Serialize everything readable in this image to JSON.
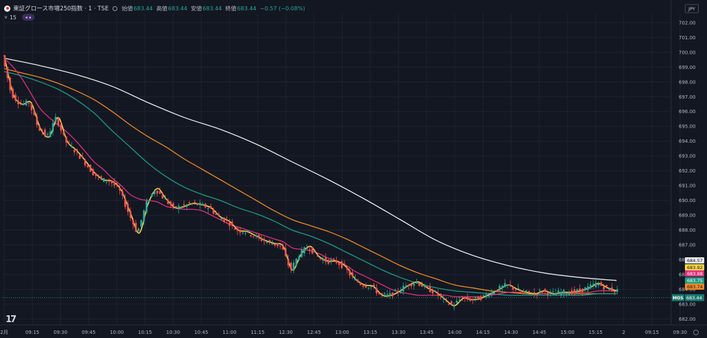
{
  "header": {
    "symbol": "東証グロース市場250指数 · 1 · TSE",
    "open_label": "始値",
    "open": "683.44",
    "high_label": "高値",
    "high": "683.44",
    "low_label": "安値",
    "low": "683.44",
    "close_label": "終値",
    "close": "683.44",
    "change": "−0.57 (−0.08%)",
    "volume_label": "15",
    "currency": "JPY"
  },
  "colors": {
    "background": "#131722",
    "grid": "#1f2330",
    "up": "#26a69a",
    "down": "#ef5350",
    "ma_yellow": "#f5d547",
    "ma_pink": "#e0307f",
    "ma_teal": "#1c9e88",
    "ma_orange": "#f08a24",
    "ma_white": "#e9e9e9"
  },
  "chart_data": {
    "type": "line",
    "xlabel": "",
    "ylabel": "",
    "x_ticks": [
      "2月",
      "09:15",
      "09:30",
      "09:45",
      "10:00",
      "10:15",
      "10:30",
      "10:45",
      "11:00",
      "11:15",
      "12:30",
      "12:45",
      "13:00",
      "13:15",
      "13:30",
      "13:45",
      "14:00",
      "14:15",
      "14:30",
      "14:45",
      "15:00",
      "15:15",
      "2",
      "09:15",
      "09:30"
    ],
    "y_ticks": [
      702.0,
      701.0,
      700.0,
      699.0,
      698.0,
      697.0,
      696.0,
      695.0,
      694.0,
      693.0,
      692.0,
      691.0,
      690.0,
      689.0,
      688.0,
      687.0,
      686.0,
      685.0,
      684.0,
      683.0,
      682.0
    ],
    "ylim": [
      681.6,
      702.6
    ],
    "grid": true,
    "series": [
      {
        "color": "#f5d547",
        "label": "683.92",
        "points": [
          [
            0,
            699.8
          ],
          [
            1,
            697.2
          ],
          [
            2,
            696.5
          ],
          [
            3,
            696.6
          ],
          [
            4,
            694.9
          ],
          [
            5,
            694.3
          ],
          [
            6,
            695.6
          ],
          [
            7,
            694.0
          ],
          [
            8,
            693.4
          ],
          [
            9,
            692.7
          ],
          [
            10,
            691.9
          ],
          [
            11,
            691.4
          ],
          [
            12,
            691.3
          ],
          [
            13,
            690.7
          ],
          [
            14,
            689.2
          ],
          [
            15,
            687.8
          ],
          [
            16,
            689.8
          ],
          [
            17,
            690.8
          ],
          [
            18,
            690.1
          ],
          [
            19,
            689.5
          ],
          [
            20,
            689.6
          ],
          [
            21,
            689.8
          ],
          [
            22,
            689.7
          ],
          [
            23,
            689.5
          ],
          [
            24,
            688.9
          ],
          [
            25,
            688.6
          ],
          [
            26,
            688.0
          ],
          [
            27,
            687.9
          ],
          [
            28,
            687.6
          ],
          [
            29,
            687.3
          ],
          [
            30,
            687.1
          ],
          [
            31,
            686.9
          ],
          [
            32,
            685.3
          ],
          [
            33,
            686.4
          ],
          [
            34,
            686.9
          ],
          [
            35,
            686.2
          ],
          [
            36,
            685.9
          ],
          [
            37,
            685.9
          ],
          [
            38,
            685.5
          ],
          [
            39,
            684.7
          ],
          [
            40,
            684.3
          ],
          [
            41,
            684.2
          ],
          [
            42,
            683.6
          ],
          [
            43,
            683.6
          ],
          [
            44,
            683.9
          ],
          [
            45,
            684.3
          ],
          [
            46,
            684.5
          ],
          [
            47,
            684.1
          ],
          [
            48,
            683.8
          ],
          [
            49,
            683.3
          ],
          [
            50,
            682.9
          ],
          [
            51,
            683.4
          ],
          [
            52,
            683.3
          ],
          [
            53,
            683.4
          ],
          [
            54,
            683.7
          ],
          [
            55,
            684.0
          ],
          [
            56,
            684.3
          ],
          [
            57,
            684.0
          ],
          [
            58,
            683.8
          ],
          [
            59,
            683.7
          ],
          [
            60,
            683.9
          ],
          [
            61,
            683.7
          ],
          [
            62,
            683.8
          ],
          [
            63,
            683.8
          ],
          [
            64,
            683.9
          ],
          [
            65,
            684.1
          ],
          [
            66,
            684.4
          ],
          [
            67,
            684.1
          ],
          [
            68,
            683.9
          ]
        ]
      },
      {
        "color": "#e0307f",
        "label": "683.88",
        "points": [
          [
            0,
            699.6
          ],
          [
            1,
            699.0
          ],
          [
            2,
            698.2
          ],
          [
            3,
            697.2
          ],
          [
            4,
            696.2
          ],
          [
            5,
            695.6
          ],
          [
            6,
            695.1
          ],
          [
            7,
            694.6
          ],
          [
            8,
            694.0
          ],
          [
            9,
            693.3
          ],
          [
            10,
            692.6
          ],
          [
            11,
            692.1
          ],
          [
            12,
            691.5
          ],
          [
            13,
            691.0
          ],
          [
            14,
            690.4
          ],
          [
            15,
            690.1
          ],
          [
            16,
            690.0
          ],
          [
            17,
            689.9
          ],
          [
            18,
            689.6
          ],
          [
            19,
            689.5
          ],
          [
            20,
            689.4
          ],
          [
            21,
            689.4
          ],
          [
            22,
            689.3
          ],
          [
            23,
            689.0
          ],
          [
            24,
            688.7
          ],
          [
            25,
            688.4
          ],
          [
            26,
            688.2
          ],
          [
            27,
            688.0
          ],
          [
            28,
            687.8
          ],
          [
            29,
            687.6
          ],
          [
            30,
            687.4
          ],
          [
            31,
            687.2
          ],
          [
            32,
            686.8
          ],
          [
            33,
            686.7
          ],
          [
            34,
            686.6
          ],
          [
            35,
            686.4
          ],
          [
            36,
            686.1
          ],
          [
            37,
            685.9
          ],
          [
            38,
            685.6
          ],
          [
            39,
            685.2
          ],
          [
            40,
            684.9
          ],
          [
            41,
            684.6
          ],
          [
            42,
            684.3
          ],
          [
            43,
            684.0
          ],
          [
            44,
            683.8
          ],
          [
            45,
            683.7
          ],
          [
            46,
            683.6
          ],
          [
            47,
            683.6
          ],
          [
            48,
            683.6
          ],
          [
            49,
            683.6
          ],
          [
            50,
            683.5
          ],
          [
            51,
            683.5
          ],
          [
            52,
            683.5
          ],
          [
            53,
            683.5
          ],
          [
            54,
            683.6
          ],
          [
            55,
            683.7
          ],
          [
            56,
            683.8
          ],
          [
            57,
            683.8
          ],
          [
            58,
            683.8
          ],
          [
            59,
            683.7
          ],
          [
            60,
            683.7
          ],
          [
            61,
            683.7
          ],
          [
            62,
            683.7
          ],
          [
            63,
            683.7
          ],
          [
            64,
            683.8
          ],
          [
            65,
            683.8
          ],
          [
            66,
            683.9
          ],
          [
            67,
            683.9
          ],
          [
            68,
            683.9
          ]
        ]
      },
      {
        "color": "#1c9e88",
        "label": "683.75",
        "points": [
          [
            0,
            698.7
          ],
          [
            2,
            698.4
          ],
          [
            4,
            698.0
          ],
          [
            6,
            697.5
          ],
          [
            8,
            696.8
          ],
          [
            10,
            695.9
          ],
          [
            11,
            695.3
          ],
          [
            12,
            694.7
          ],
          [
            14,
            693.6
          ],
          [
            16,
            692.5
          ],
          [
            18,
            691.6
          ],
          [
            20,
            690.9
          ],
          [
            22,
            690.4
          ],
          [
            24,
            690.0
          ],
          [
            26,
            689.5
          ],
          [
            28,
            689.1
          ],
          [
            30,
            688.6
          ],
          [
            32,
            688.0
          ],
          [
            34,
            687.6
          ],
          [
            36,
            687.1
          ],
          [
            38,
            686.5
          ],
          [
            40,
            685.9
          ],
          [
            42,
            685.3
          ],
          [
            44,
            684.8
          ],
          [
            46,
            684.4
          ],
          [
            48,
            684.1
          ],
          [
            50,
            683.9
          ],
          [
            52,
            683.8
          ],
          [
            54,
            683.7
          ],
          [
            56,
            683.6
          ],
          [
            58,
            683.6
          ],
          [
            60,
            683.6
          ],
          [
            62,
            683.6
          ],
          [
            64,
            683.6
          ],
          [
            66,
            683.7
          ],
          [
            68,
            683.7
          ]
        ]
      },
      {
        "color": "#f08a24",
        "label": "683.74",
        "points": [
          [
            0,
            698.9
          ],
          [
            2,
            698.6
          ],
          [
            4,
            698.3
          ],
          [
            6,
            697.9
          ],
          [
            8,
            697.4
          ],
          [
            10,
            696.8
          ],
          [
            12,
            696.0
          ],
          [
            14,
            695.1
          ],
          [
            16,
            694.3
          ],
          [
            18,
            693.6
          ],
          [
            20,
            692.8
          ],
          [
            22,
            692.1
          ],
          [
            24,
            691.4
          ],
          [
            26,
            690.7
          ],
          [
            28,
            690.0
          ],
          [
            30,
            689.3
          ],
          [
            32,
            688.7
          ],
          [
            34,
            688.3
          ],
          [
            36,
            687.9
          ],
          [
            38,
            687.4
          ],
          [
            40,
            686.8
          ],
          [
            42,
            686.2
          ],
          [
            44,
            685.6
          ],
          [
            46,
            685.1
          ],
          [
            48,
            684.7
          ],
          [
            50,
            684.3
          ],
          [
            52,
            684.1
          ],
          [
            54,
            683.9
          ],
          [
            56,
            683.8
          ],
          [
            58,
            683.7
          ],
          [
            60,
            683.7
          ],
          [
            62,
            683.7
          ],
          [
            64,
            683.7
          ],
          [
            66,
            683.7
          ],
          [
            68,
            683.7
          ]
        ]
      },
      {
        "color": "#e9e9e9",
        "label": "684.57",
        "points": [
          [
            0,
            699.6
          ],
          [
            4,
            699.1
          ],
          [
            8,
            698.5
          ],
          [
            12,
            697.7
          ],
          [
            16,
            696.6
          ],
          [
            20,
            695.6
          ],
          [
            24,
            694.8
          ],
          [
            28,
            693.8
          ],
          [
            32,
            692.6
          ],
          [
            36,
            691.4
          ],
          [
            40,
            690.1
          ],
          [
            44,
            688.7
          ],
          [
            48,
            687.3
          ],
          [
            52,
            686.3
          ],
          [
            56,
            685.6
          ],
          [
            60,
            685.1
          ],
          [
            64,
            684.8
          ],
          [
            68,
            684.6
          ]
        ]
      }
    ],
    "price_label": {
      "text": "683.44",
      "tag": "MOS",
      "value": 683.44
    }
  }
}
